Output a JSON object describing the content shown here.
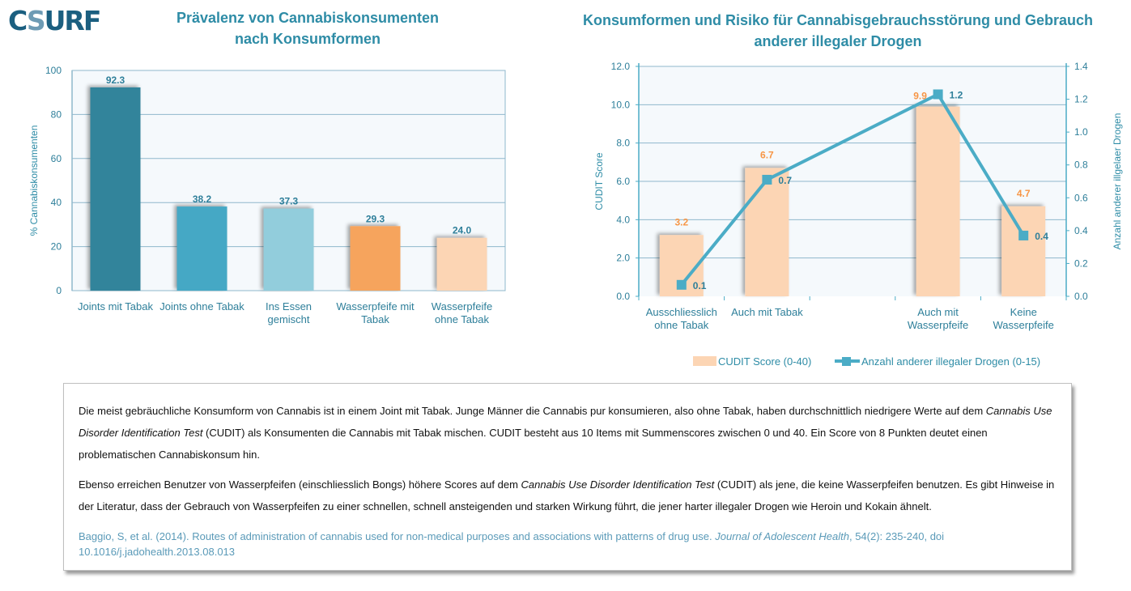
{
  "logo": {
    "pre": "C",
    "mid": "S",
    "post": "URF"
  },
  "chart_data": [
    {
      "type": "bar",
      "title": "Prävalenz von Cannabiskonsumenten nach Konsumformen",
      "title_lines": [
        "Prävalenz von Cannabiskonsumenten",
        "nach Konsumformen"
      ],
      "ylabel": "% Cannabiskonsumenten",
      "xlabel": "",
      "ylim": [
        0,
        100
      ],
      "yticks": [
        0,
        20,
        40,
        60,
        80,
        100
      ],
      "grid": true,
      "categories": [
        "Joints mit Tabak",
        "Joints ohne Tabak",
        "Ins Essen gemischt",
        "Wasserpfeife mit Tabak",
        "Wasserpfeife ohne Tabak"
      ],
      "category_lines": [
        [
          "Joints mit Tabak"
        ],
        [
          "Joints ohne Tabak"
        ],
        [
          "Ins Essen",
          "gemischt"
        ],
        [
          "Wasserpfeife mit",
          "Tabak"
        ],
        [
          "Wasserpfeife",
          "ohne Tabak"
        ]
      ],
      "values": [
        92.3,
        38.2,
        37.3,
        29.3,
        24.0
      ],
      "value_labels": [
        "92.3",
        "38.2",
        "37.3",
        "29.3",
        "24.0"
      ],
      "colors": [
        "#31849b",
        "#44a8c5",
        "#92cddc",
        "#f6a45d",
        "#fcd5b4"
      ]
    },
    {
      "type": "bar+line",
      "title": "Konsumformen und Risiko für Cannabisgebrauchsstörung und Gebrauch anderer illegaler Drogen",
      "title_lines": [
        "Konsumformen und Risiko für Cannabisgebrauchsstörung und Gebrauch",
        "anderer illegaler Drogen"
      ],
      "ylabel": "CUDIT Score",
      "y2label": "Anzahl anderer illgelaer Drogen",
      "ylim": [
        0,
        12
      ],
      "yticks": [
        "0.0",
        "2.0",
        "4.0",
        "6.0",
        "8.0",
        "10.0",
        "12.0"
      ],
      "y2lim": [
        0,
        1.4
      ],
      "y2ticks": [
        "0.0",
        "0.2",
        "0.4",
        "0.6",
        "0.8",
        "1.0",
        "1.2",
        "1.4"
      ],
      "grid": true,
      "legend_position": "bottom",
      "categories": [
        "Ausschliesslich ohne Tabak",
        "Auch mit Tabak",
        "",
        "Auch mit Wasserpfeife",
        "Keine Wasserpfeife"
      ],
      "category_lines": [
        [
          "Ausschliesslich",
          "ohne Tabak"
        ],
        [
          "Auch mit Tabak"
        ],
        [],
        [
          "Auch mit",
          "Wasserpfeife"
        ],
        [
          "Keine",
          "Wasserpfeife"
        ]
      ],
      "series": [
        {
          "name": "CUDIT Score (0-40)",
          "type": "bar",
          "axis": "left",
          "color": "#fcd5b4",
          "label_color": "#f79646",
          "values": [
            3.2,
            6.7,
            null,
            9.9,
            4.7
          ],
          "value_labels": [
            "3.2",
            "6.7",
            "",
            "9.9",
            "4.7"
          ]
        },
        {
          "name": "Anzahl anderer illegaler Drogen  (0-15)",
          "type": "line",
          "axis": "right",
          "color": "#4bacc6",
          "label_color": "#2e7f9a",
          "values": [
            0.07,
            0.71,
            null,
            1.23,
            0.37
          ],
          "value_labels": [
            "0.1",
            "0.7",
            "",
            "1.2",
            "0.4"
          ]
        }
      ]
    }
  ],
  "textbox": {
    "p1_a": "Die meist gebräuchliche Konsumform von Cannabis ist in  einem Joint mit  Tabak. Junge Männer die Cannabis pur konsumieren, also ohne Tabak, haben durchschnittlich niedrigere Werte auf dem ",
    "p1_italic": "Cannabis Use Disorder Identification Test",
    "p1_b": "  (CUDIT) als Konsumenten die Cannabis mit Tabak mischen.  CUDIT besteht aus  10 Items mit Summenscores zwischen 0 und  40.  Ein  Score von 8 Punkten deutet einen problematischen Cannabiskonsum hin.",
    "p2_a": "Ebenso erreichen Benutzer von Wasserpfeifen (einschliesslich Bongs) höhere Scores auf dem  ",
    "p2_italic": "Cannabis Use Disorder Identification Test",
    "p2_b": "  (CUDIT) als jene, die keine Wasserpfeifen benutzen. Es gibt Hinweise in der Literatur, dass der Gebrauch von Wasserpfeifen zu einer schnellen, schnell ansteigenden und starken Wirkung führt, die jener harter illegaler  Drogen wie Heroin und Kokain ähnelt.",
    "cite_a": "Baggio, S, et al.  (2014).  Routes of administration of cannabis used for non-medical purposes and associations with patterns of drug use.  ",
    "cite_italic": "Journal of Adolescent Health",
    "cite_b": ", 54(2):  235-240,  doi 10.1016/j.jadohealth.2013.08.013"
  }
}
